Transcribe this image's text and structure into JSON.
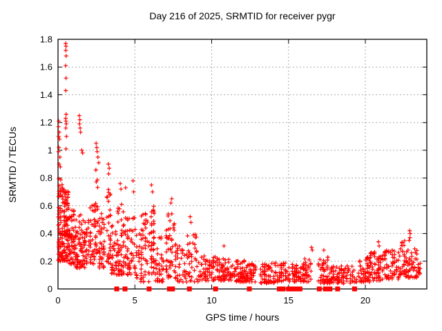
{
  "chart_data": {
    "type": "scatter",
    "title": "Day 216 of 2025, SRMTID for receiver pygr",
    "xlabel": "GPS time / hours",
    "ylabel": "SRMTID / TECUs",
    "xlim": [
      0,
      24
    ],
    "ylim": [
      0,
      1.8
    ],
    "xticks": [
      0,
      5,
      10,
      15,
      20
    ],
    "yticks": [
      0,
      0.2,
      0.4,
      0.6,
      0.8,
      1,
      1.2,
      1.4,
      1.6,
      1.8
    ],
    "grid": true,
    "legend": "none",
    "marker": "plus",
    "marker_color": "#ff0000",
    "grid_color": "#a8a8a8",
    "axis_color": "#000000",
    "seed": 42,
    "outlier_points": [
      [
        0.5,
        1.77
      ],
      [
        0.52,
        1.75
      ],
      [
        0.51,
        1.72
      ],
      [
        0.53,
        1.68
      ],
      [
        0.5,
        1.61
      ],
      [
        0.52,
        1.52
      ],
      [
        0.51,
        1.43
      ],
      [
        0.53,
        1.26
      ],
      [
        0.5,
        1.23
      ],
      [
        0.52,
        1.21
      ],
      [
        0.54,
        1.19
      ],
      [
        0.51,
        1.16
      ],
      [
        0.55,
        1.1
      ],
      [
        0.52,
        1.01
      ],
      [
        0.05,
        1.21
      ],
      [
        0.03,
        1.17
      ],
      [
        0.08,
        1.13
      ],
      [
        0.04,
        1.1
      ],
      [
        0.1,
        1.08
      ],
      [
        0.06,
        1.02
      ],
      [
        0.03,
        0.99
      ],
      [
        0.12,
        0.95
      ],
      [
        0.07,
        0.9
      ],
      [
        0.15,
        0.88
      ],
      [
        1.38,
        1.25
      ],
      [
        1.42,
        1.22
      ],
      [
        1.4,
        1.19
      ],
      [
        1.44,
        1.16
      ],
      [
        1.47,
        1.13
      ],
      [
        1.55,
        1.0
      ],
      [
        1.6,
        0.98
      ],
      [
        2.48,
        1.05
      ],
      [
        2.52,
        1.02
      ],
      [
        2.55,
        0.99
      ],
      [
        2.6,
        0.95
      ],
      [
        2.65,
        0.91
      ],
      [
        3.28,
        0.9
      ],
      [
        3.33,
        0.87
      ],
      [
        3.3,
        0.83
      ],
      [
        4.05,
        0.76
      ],
      [
        4.1,
        0.72
      ],
      [
        4.4,
        0.73
      ],
      [
        4.88,
        0.78
      ],
      [
        4.92,
        0.7
      ],
      [
        6.08,
        0.75
      ],
      [
        6.15,
        0.7
      ],
      [
        7.4,
        0.65
      ],
      [
        7.35,
        0.62
      ],
      [
        8.6,
        0.52
      ],
      [
        8.65,
        0.48
      ],
      [
        10.8,
        0.31
      ],
      [
        16.5,
        0.3
      ],
      [
        16.55,
        0.28
      ],
      [
        17.3,
        0.28
      ],
      [
        20.85,
        0.34
      ],
      [
        20.9,
        0.31
      ],
      [
        22.88,
        0.42
      ],
      [
        22.92,
        0.4
      ],
      [
        22.9,
        0.37
      ],
      [
        22.85,
        0.35
      ]
    ],
    "bursts": [
      {
        "h0": 0.0,
        "h1": 0.35,
        "n": 85,
        "lo": 0.2,
        "hi": 0.8
      },
      {
        "h0": 0.35,
        "h1": 0.7,
        "n": 95,
        "lo": 0.2,
        "hi": 0.72
      },
      {
        "h0": 0.7,
        "h1": 1.1,
        "n": 60,
        "lo": 0.18,
        "hi": 0.58
      },
      {
        "h0": 1.1,
        "h1": 1.55,
        "n": 55,
        "lo": 0.15,
        "hi": 0.55
      },
      {
        "h0": 1.55,
        "h1": 2.05,
        "n": 45,
        "lo": 0.15,
        "hi": 0.5
      },
      {
        "h0": 2.05,
        "h1": 2.4,
        "n": 35,
        "lo": 0.18,
        "hi": 0.62
      },
      {
        "h0": 2.4,
        "h1": 2.65,
        "n": 28,
        "lo": 0.25,
        "hi": 0.88
      },
      {
        "h0": 2.65,
        "h1": 3.05,
        "n": 40,
        "lo": 0.15,
        "hi": 0.55
      },
      {
        "h0": 3.15,
        "h1": 3.45,
        "n": 32,
        "lo": 0.18,
        "hi": 0.72
      },
      {
        "h0": 3.45,
        "h1": 3.85,
        "n": 35,
        "lo": 0.1,
        "hi": 0.48
      },
      {
        "h0": 3.85,
        "h1": 4.2,
        "n": 40,
        "lo": 0.1,
        "hi": 0.62
      },
      {
        "h0": 4.2,
        "h1": 4.6,
        "n": 35,
        "lo": 0.1,
        "hi": 0.58
      },
      {
        "h0": 4.6,
        "h1": 5.05,
        "n": 30,
        "lo": 0.1,
        "hi": 0.52
      },
      {
        "h0": 5.05,
        "h1": 5.35,
        "n": 16,
        "lo": 0.08,
        "hi": 0.42
      },
      {
        "h0": 5.35,
        "h1": 6.0,
        "n": 50,
        "lo": 0.05,
        "hi": 0.55
      },
      {
        "h0": 6.0,
        "h1": 6.3,
        "n": 40,
        "lo": 0.1,
        "hi": 0.62
      },
      {
        "h0": 6.3,
        "h1": 6.9,
        "n": 35,
        "lo": 0.05,
        "hi": 0.38
      },
      {
        "h0": 7.0,
        "h1": 7.6,
        "n": 45,
        "lo": 0.08,
        "hi": 0.55
      },
      {
        "h0": 7.6,
        "h1": 8.4,
        "n": 42,
        "lo": 0.05,
        "hi": 0.33
      },
      {
        "h0": 8.4,
        "h1": 9.3,
        "n": 45,
        "lo": 0.05,
        "hi": 0.4
      },
      {
        "h0": 9.3,
        "h1": 10.3,
        "n": 55,
        "lo": 0.06,
        "hi": 0.24
      },
      {
        "h0": 10.3,
        "h1": 11.3,
        "n": 70,
        "lo": 0.06,
        "hi": 0.22
      },
      {
        "h0": 11.3,
        "h1": 12.3,
        "n": 70,
        "lo": 0.05,
        "hi": 0.21
      },
      {
        "h0": 12.3,
        "h1": 12.9,
        "n": 40,
        "lo": 0.05,
        "hi": 0.19
      },
      {
        "h0": 13.15,
        "h1": 14.1,
        "n": 60,
        "lo": 0.04,
        "hi": 0.19
      },
      {
        "h0": 14.1,
        "h1": 15.1,
        "n": 50,
        "lo": 0.05,
        "hi": 0.19
      },
      {
        "h0": 15.2,
        "h1": 15.85,
        "n": 45,
        "lo": 0.05,
        "hi": 0.19
      },
      {
        "h0": 15.9,
        "h1": 16.5,
        "n": 40,
        "lo": 0.05,
        "hi": 0.22
      },
      {
        "h0": 16.9,
        "h1": 17.6,
        "n": 45,
        "lo": 0.04,
        "hi": 0.23
      },
      {
        "h0": 17.6,
        "h1": 18.35,
        "n": 45,
        "lo": 0.04,
        "hi": 0.19
      },
      {
        "h0": 18.4,
        "h1": 19.2,
        "n": 40,
        "lo": 0.04,
        "hi": 0.17
      },
      {
        "h0": 19.2,
        "h1": 19.6,
        "n": 8,
        "lo": 0.05,
        "hi": 0.14
      },
      {
        "h0": 19.6,
        "h1": 20.3,
        "n": 50,
        "lo": 0.05,
        "hi": 0.24
      },
      {
        "h0": 20.3,
        "h1": 21.2,
        "n": 60,
        "lo": 0.06,
        "hi": 0.27
      },
      {
        "h0": 21.2,
        "h1": 22.2,
        "n": 60,
        "lo": 0.07,
        "hi": 0.28
      },
      {
        "h0": 22.2,
        "h1": 22.6,
        "n": 30,
        "lo": 0.1,
        "hi": 0.35
      },
      {
        "h0": 22.6,
        "h1": 23.4,
        "n": 50,
        "lo": 0.08,
        "hi": 0.3
      },
      {
        "h0": 23.4,
        "h1": 23.6,
        "n": 10,
        "lo": 0.1,
        "hi": 0.2
      }
    ],
    "zero_marker_hours": [
      3.82,
      4.36,
      5.93,
      7.25,
      7.45,
      8.55,
      10.25,
      12.45,
      14.4,
      14.65,
      15.0,
      15.25,
      15.45,
      15.75,
      17.0,
      17.4,
      17.7,
      18.2,
      19.3
    ]
  }
}
